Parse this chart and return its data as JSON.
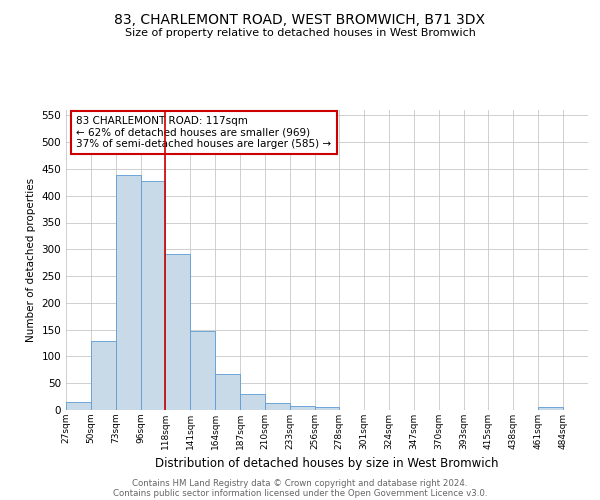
{
  "title": "83, CHARLEMONT ROAD, WEST BROMWICH, B71 3DX",
  "subtitle": "Size of property relative to detached houses in West Bromwich",
  "xlabel": "Distribution of detached houses by size in West Bromwich",
  "ylabel": "Number of detached properties",
  "bin_labels": [
    "27sqm",
    "50sqm",
    "73sqm",
    "96sqm",
    "118sqm",
    "141sqm",
    "164sqm",
    "187sqm",
    "210sqm",
    "233sqm",
    "256sqm",
    "278sqm",
    "301sqm",
    "324sqm",
    "347sqm",
    "370sqm",
    "393sqm",
    "415sqm",
    "438sqm",
    "461sqm",
    "484sqm"
  ],
  "bin_edges": [
    27,
    50,
    73,
    96,
    118,
    141,
    164,
    187,
    210,
    233,
    256,
    278,
    301,
    324,
    347,
    370,
    393,
    415,
    438,
    461,
    484,
    507
  ],
  "bar_heights": [
    15,
    128,
    438,
    427,
    291,
    147,
    67,
    29,
    14,
    8,
    5,
    0,
    0,
    0,
    0,
    0,
    0,
    0,
    0,
    5,
    0
  ],
  "bar_color": "#c8d9e8",
  "bar_edgecolor": "#5b9bd5",
  "vline_x": 118,
  "vline_color": "#cc0000",
  "ylim": [
    0,
    560
  ],
  "yticks": [
    0,
    50,
    100,
    150,
    200,
    250,
    300,
    350,
    400,
    450,
    500,
    550
  ],
  "annotation_box_text": [
    "83 CHARLEMONT ROAD: 117sqm",
    "← 62% of detached houses are smaller (969)",
    "37% of semi-detached houses are larger (585) →"
  ],
  "annotation_box_color": "#cc0000",
  "footer_line1": "Contains HM Land Registry data © Crown copyright and database right 2024.",
  "footer_line2": "Contains public sector information licensed under the Open Government Licence v3.0.",
  "background_color": "#ffffff",
  "grid_color": "#c8c8c8"
}
